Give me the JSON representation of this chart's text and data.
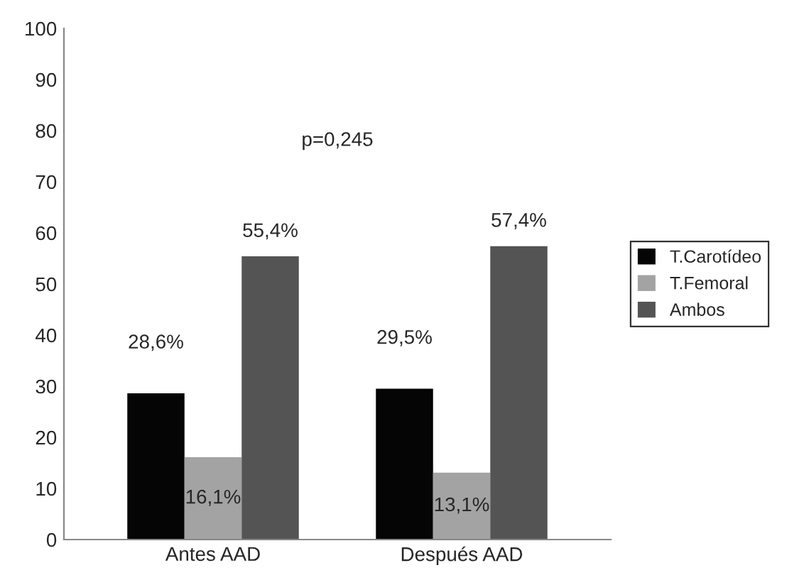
{
  "chart_data": {
    "type": "bar",
    "categories": [
      "Antes AAD",
      "Después AAD"
    ],
    "series": [
      {
        "name": "T.Carotídeo",
        "color": "#050505",
        "values": [
          28.6,
          29.5
        ],
        "value_labels": [
          "28,6%",
          "29,5%"
        ]
      },
      {
        "name": "T.Femoral",
        "color": "#a3a3a3",
        "values": [
          16.1,
          13.1
        ],
        "value_labels": [
          "16,1%",
          "13,1%"
        ]
      },
      {
        "name": "Ambos",
        "color": "#545454",
        "values": [
          55.4,
          57.4
        ],
        "value_labels": [
          "55,4%",
          "57,4%"
        ]
      }
    ],
    "annotations": [
      "p=0,245"
    ],
    "ylim": [
      0,
      100
    ],
    "yticks": [
      0,
      10,
      20,
      30,
      40,
      50,
      60,
      70,
      80,
      90,
      100
    ],
    "grid": false,
    "legend": "right"
  }
}
